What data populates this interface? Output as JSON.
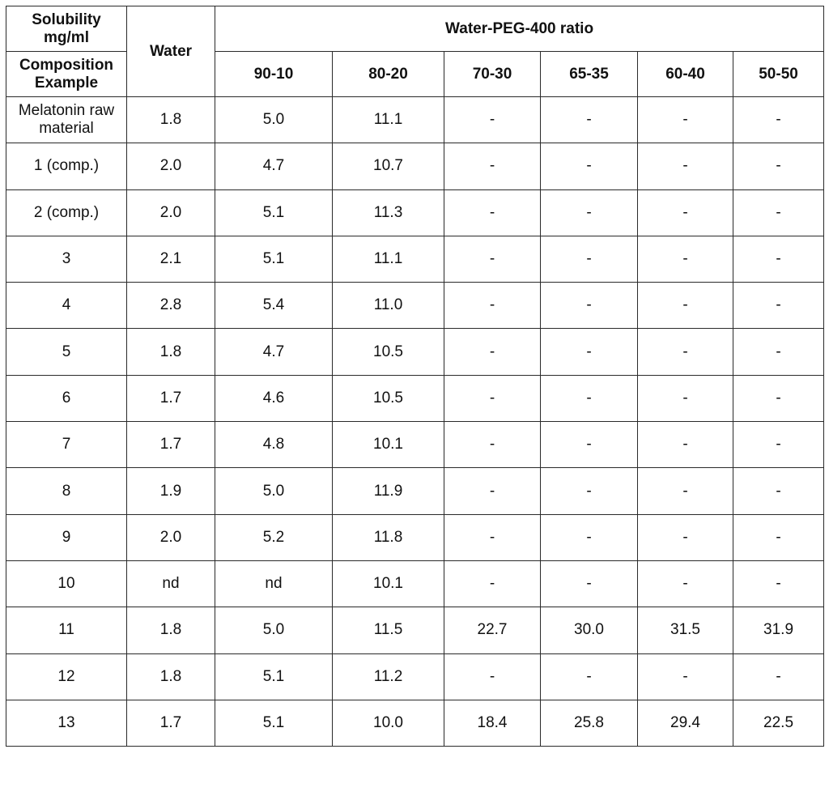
{
  "header": {
    "solubility": "Solubility mg/ml",
    "composition": "Composition Example",
    "water": "Water",
    "ratio_group": "Water-PEG-400 ratio",
    "ratios": [
      "90-10",
      "80-20",
      "70-30",
      "65-35",
      "60-40",
      "50-50"
    ]
  },
  "rows": [
    [
      "Melatonin raw material",
      "1.8",
      "5.0",
      "11.1",
      "-",
      "-",
      "-",
      "-"
    ],
    [
      "1 (comp.)",
      "2.0",
      "4.7",
      "10.7",
      "-",
      "-",
      "-",
      "-"
    ],
    [
      "2 (comp.)",
      "2.0",
      "5.1",
      "11.3",
      "-",
      "-",
      "-",
      "-"
    ],
    [
      "3",
      "2.1",
      "5.1",
      "11.1",
      "-",
      "-",
      "-",
      "-"
    ],
    [
      "4",
      "2.8",
      "5.4",
      "11.0",
      "-",
      "-",
      "-",
      "-"
    ],
    [
      "5",
      "1.8",
      "4.7",
      "10.5",
      "-",
      "-",
      "-",
      "-"
    ],
    [
      "6",
      "1.7",
      "4.6",
      "10.5",
      "-",
      "-",
      "-",
      "-"
    ],
    [
      "7",
      "1.7",
      "4.8",
      "10.1",
      "-",
      "-",
      "-",
      "-"
    ],
    [
      "8",
      "1.9",
      "5.0",
      "11.9",
      "-",
      "-",
      "-",
      "-"
    ],
    [
      "9",
      "2.0",
      "5.2",
      "11.8",
      "-",
      "-",
      "-",
      "-"
    ],
    [
      "10",
      "nd",
      "nd",
      "10.1",
      "-",
      "-",
      "-",
      "-"
    ],
    [
      "11",
      "1.8",
      "5.0",
      "11.5",
      "22.7",
      "30.0",
      "31.5",
      "31.9"
    ],
    [
      "12",
      "1.8",
      "5.1",
      "11.2",
      "-",
      "-",
      "-",
      "-"
    ],
    [
      "13",
      "1.7",
      "5.1",
      "10.0",
      "18.4",
      "25.8",
      "29.4",
      "22.5"
    ]
  ]
}
